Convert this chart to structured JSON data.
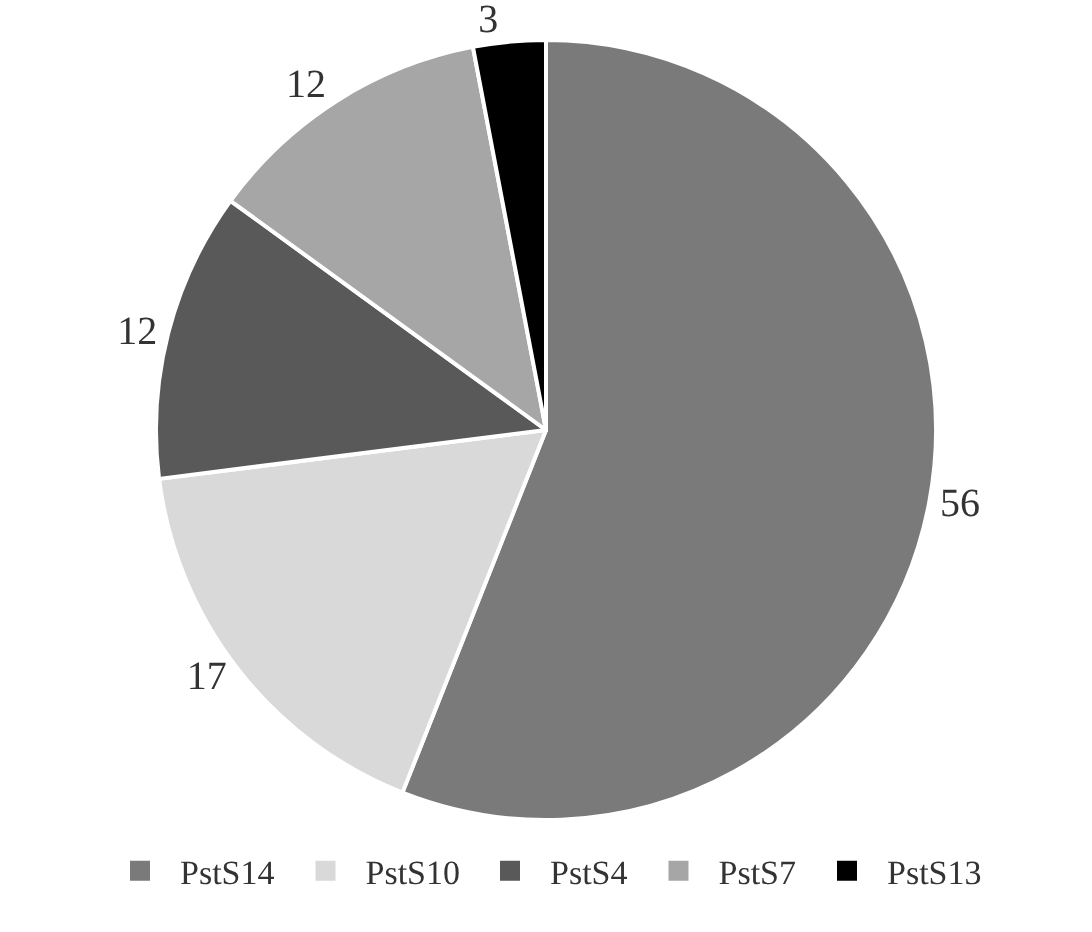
{
  "chart_data": {
    "type": "pie",
    "categories": [
      "PstS14",
      "PstS10",
      "PstS4",
      "PstS7",
      "PstS13"
    ],
    "values": [
      56,
      17,
      12,
      12,
      3
    ],
    "colors": [
      "#7a7a7a",
      "#d9d9d9",
      "#595959",
      "#a6a6a6",
      "#000000"
    ],
    "data_labels": true,
    "legend": "bottom"
  }
}
